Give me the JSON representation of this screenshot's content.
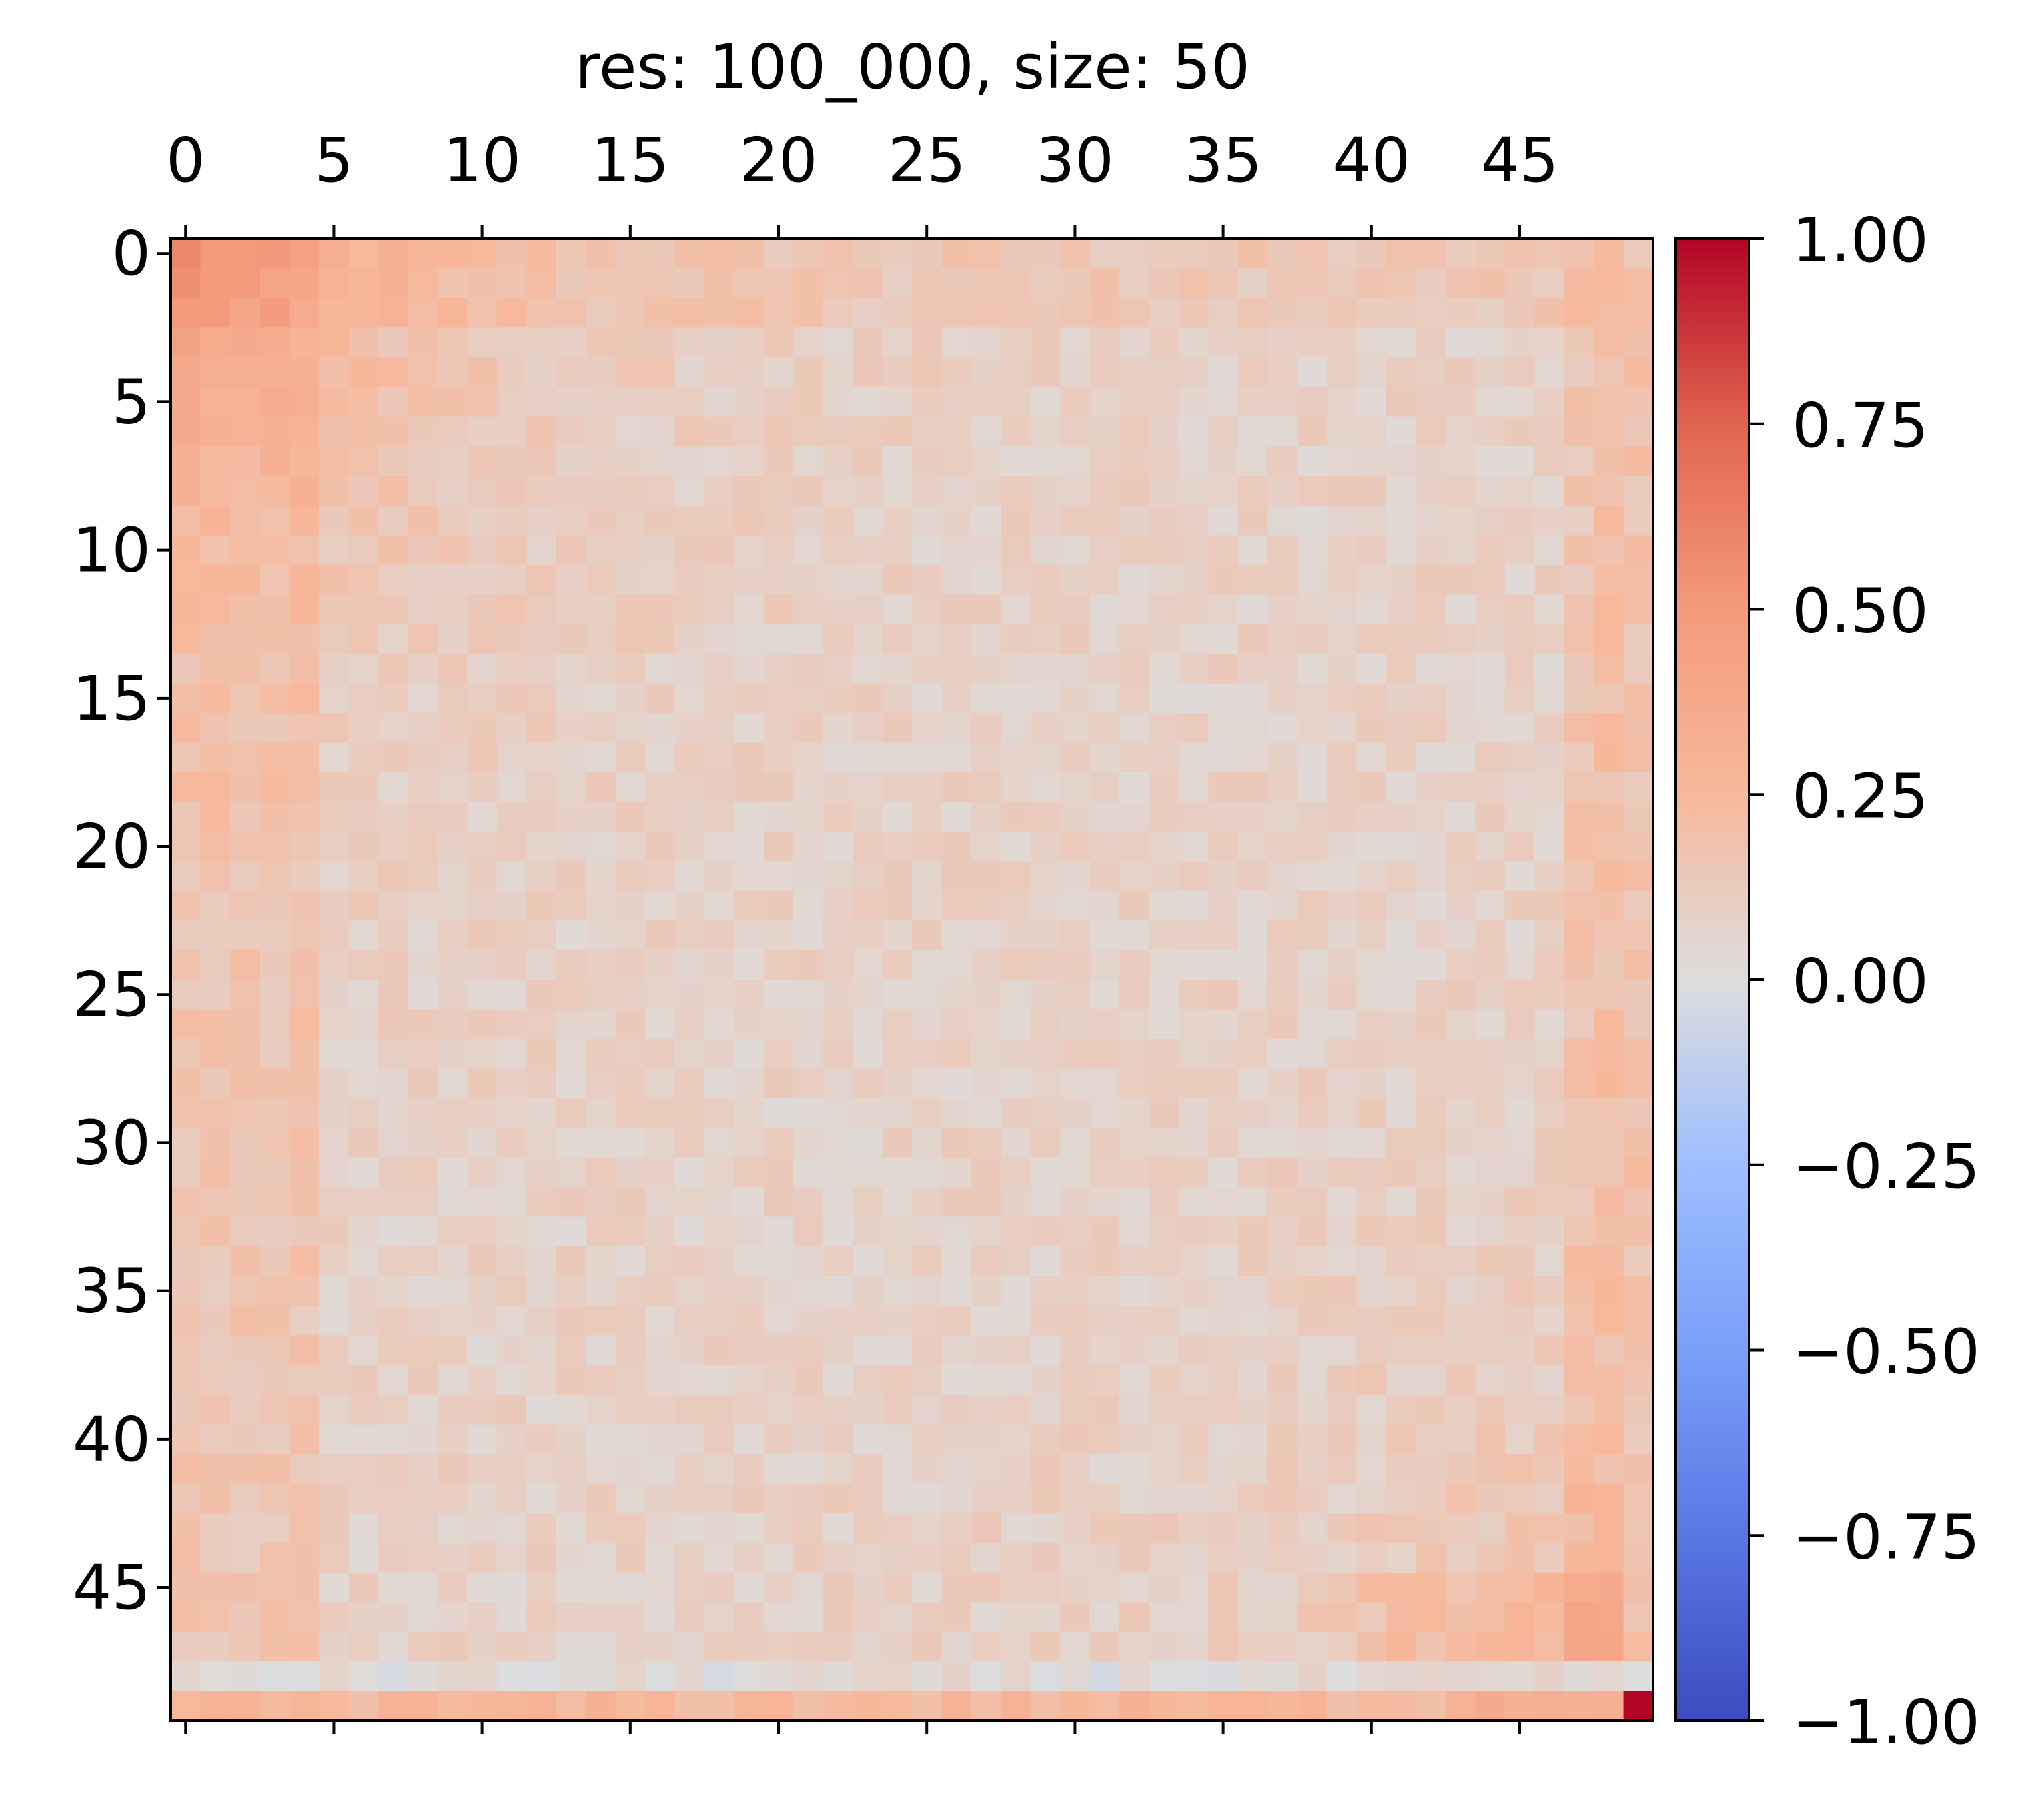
{
  "chart_data": {
    "type": "heatmap",
    "title": "res: 100_000, size: 50",
    "rows": 50,
    "cols": 50,
    "x_ticks": [
      0,
      5,
      10,
      15,
      20,
      25,
      30,
      35,
      40,
      45
    ],
    "y_ticks": [
      0,
      5,
      10,
      15,
      20,
      25,
      30,
      35,
      40,
      45
    ],
    "x_tick_position": "top",
    "colormap": "coolwarm",
    "vmin": -1.0,
    "vmax": 1.0,
    "colorbar": {
      "ticks": [
        1.0,
        0.75,
        0.5,
        0.25,
        0.0,
        -0.25,
        -0.5,
        -0.75,
        -1.0
      ],
      "labels": [
        "1.00",
        "0.75",
        "0.50",
        "0.25",
        "0.00",
        "−0.25",
        "−0.50",
        "−0.75",
        "−1.00"
      ],
      "placement": "right"
    },
    "pattern_note_values": {
      "top_left_block_level": 0.35,
      "background_level": 0.08,
      "bottom_right_block_level": 0.3,
      "last_row_level": 0.25,
      "second_last_row_level": 0.0,
      "corner_cell_value": 1.0
    }
  }
}
